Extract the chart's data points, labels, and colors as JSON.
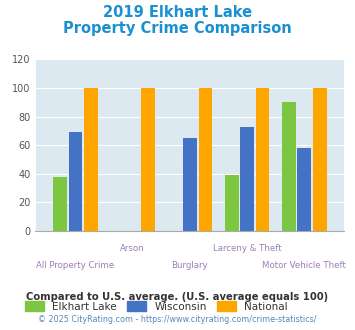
{
  "title_line1": "2019 Elkhart Lake",
  "title_line2": "Property Crime Comparison",
  "categories": [
    "All Property Crime",
    "Arson",
    "Burglary",
    "Larceny & Theft",
    "Motor Vehicle Theft"
  ],
  "elkhart_lake": [
    38,
    0,
    0,
    39,
    90
  ],
  "wisconsin": [
    69,
    0,
    65,
    73,
    58
  ],
  "national": [
    100,
    100,
    100,
    100,
    100
  ],
  "bar_colors": {
    "elkhart_lake": "#7dc642",
    "wisconsin": "#4472c4",
    "national": "#ffa500"
  },
  "ylim": [
    0,
    120
  ],
  "yticks": [
    0,
    20,
    40,
    60,
    80,
    100,
    120
  ],
  "xlabel_color": "#9b7fb6",
  "title_color": "#1a8fd1",
  "legend_labels": [
    "Elkhart Lake",
    "Wisconsin",
    "National"
  ],
  "legend_text_color": "#333333",
  "footnote1": "Compared to U.S. average. (U.S. average equals 100)",
  "footnote1_color": "#333333",
  "footnote2": "© 2025 CityRating.com - https://www.cityrating.com/crime-statistics/",
  "footnote2_color": "#5588bb",
  "plot_bg_color": "#dce9f0",
  "fig_bg_color": "#ffffff"
}
